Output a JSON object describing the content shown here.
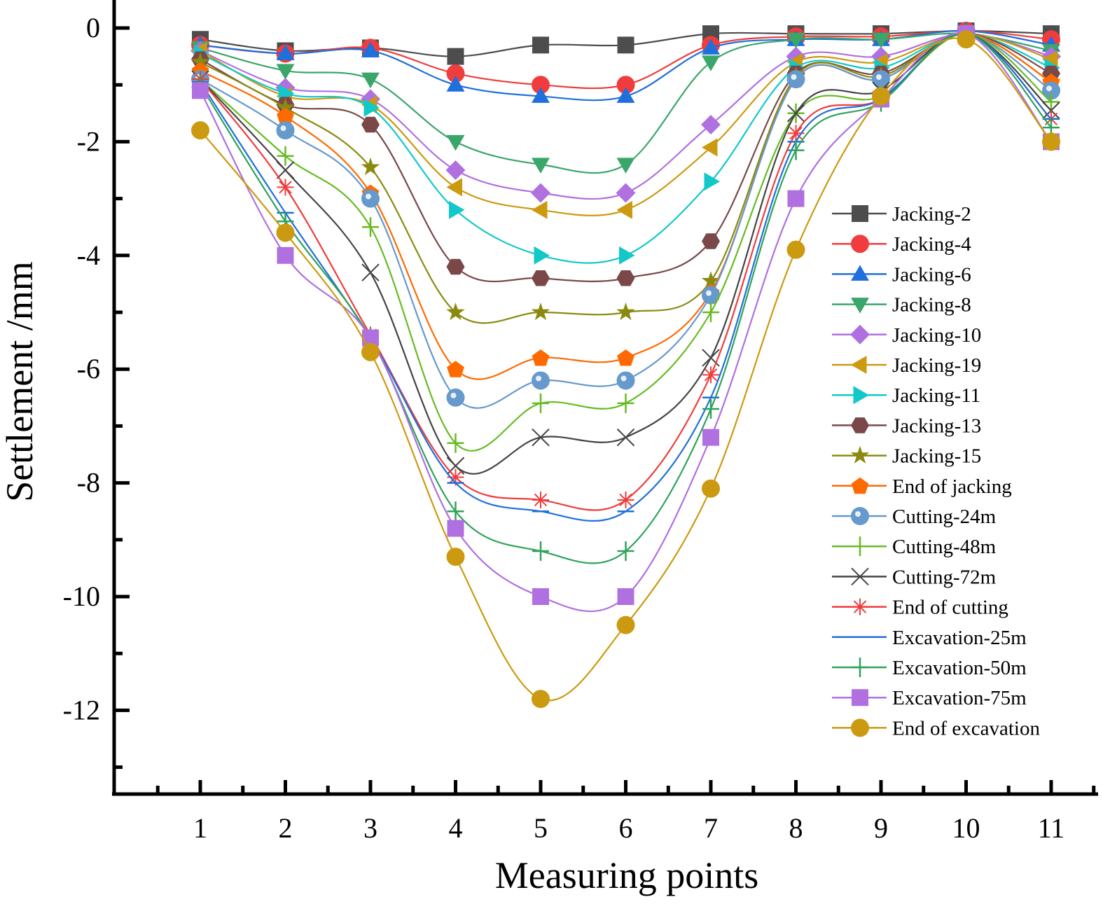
{
  "chart_data": {
    "type": "line",
    "title": "",
    "xlabel": "Measuring points",
    "ylabel": "Settlement /mm",
    "xlim": [
      0,
      11.5
    ],
    "ylim": [
      -13.5,
      0.4
    ],
    "x_ticks": [
      1,
      2,
      3,
      4,
      5,
      6,
      7,
      8,
      9,
      10,
      11
    ],
    "x_tick_labels": [
      "1",
      "2",
      "3",
      "4",
      "5",
      "6",
      "7",
      "8",
      "9",
      "10",
      "11"
    ],
    "y_ticks": [
      0,
      -2,
      -4,
      -6,
      -8,
      -10,
      -12
    ],
    "y_tick_labels": [
      "0",
      "-2",
      "-4",
      "-6",
      "-8",
      "-10",
      "-12"
    ],
    "grid": false,
    "legend_position": "right",
    "x": [
      1,
      2,
      3,
      4,
      5,
      6,
      7,
      8,
      9,
      10,
      11
    ],
    "series": [
      {
        "name": "Jacking-2",
        "color": "#4d4d4d",
        "marker": "square",
        "values": [
          -0.2,
          -0.4,
          -0.35,
          -0.5,
          -0.3,
          -0.3,
          -0.1,
          -0.1,
          -0.1,
          -0.05,
          -0.1
        ]
      },
      {
        "name": "Jacking-4",
        "color": "#f03c3c",
        "marker": "circle",
        "values": [
          -0.3,
          -0.45,
          -0.35,
          -0.8,
          -1.0,
          -1.0,
          -0.3,
          -0.15,
          -0.15,
          -0.05,
          -0.2
        ]
      },
      {
        "name": "Jacking-6",
        "color": "#1f6fdc",
        "marker": "triangle-up",
        "values": [
          -0.3,
          -0.45,
          -0.4,
          -1.0,
          -1.2,
          -1.2,
          -0.35,
          -0.2,
          -0.2,
          -0.05,
          -0.3
        ]
      },
      {
        "name": "Jacking-8",
        "color": "#3aa66a",
        "marker": "triangle-down",
        "values": [
          -0.35,
          -0.75,
          -0.9,
          -2.0,
          -2.4,
          -2.4,
          -0.6,
          -0.2,
          -0.2,
          -0.1,
          -0.4
        ]
      },
      {
        "name": "Jacking-10",
        "color": "#b070e0",
        "marker": "diamond",
        "values": [
          -0.4,
          -1.05,
          -1.25,
          -2.5,
          -2.9,
          -2.9,
          -1.7,
          -0.5,
          -0.5,
          -0.1,
          -0.5
        ]
      },
      {
        "name": "Jacking-19",
        "color": "#cc9a10",
        "marker": "triangle-left",
        "values": [
          -0.4,
          -1.2,
          -1.35,
          -2.8,
          -3.2,
          -3.2,
          -2.1,
          -0.6,
          -0.6,
          -0.1,
          -0.55
        ]
      },
      {
        "name": "Jacking-11",
        "color": "#12c8c8",
        "marker": "triangle-right",
        "values": [
          -0.45,
          -1.15,
          -1.4,
          -3.2,
          -4.0,
          -4.0,
          -2.7,
          -0.7,
          -0.7,
          -0.1,
          -0.7
        ]
      },
      {
        "name": "Jacking-13",
        "color": "#7a4848",
        "marker": "hexagon",
        "values": [
          -0.55,
          -1.35,
          -1.7,
          -4.2,
          -4.4,
          -4.4,
          -3.75,
          -0.8,
          -0.8,
          -0.1,
          -0.8
        ]
      },
      {
        "name": "Jacking-15",
        "color": "#8a8a10",
        "marker": "star",
        "values": [
          -0.6,
          -1.4,
          -2.45,
          -5.0,
          -5.0,
          -5.0,
          -4.45,
          -0.85,
          -0.85,
          -0.1,
          -0.95
        ]
      },
      {
        "name": "End of jacking",
        "color": "#ff6a00",
        "marker": "pentagon",
        "values": [
          -0.75,
          -1.55,
          -2.9,
          -6.0,
          -5.8,
          -5.8,
          -4.65,
          -0.9,
          -0.9,
          -0.1,
          -0.95
        ]
      },
      {
        "name": "Cutting-24m",
        "color": "#6699cc",
        "marker": "sphere",
        "values": [
          -0.9,
          -1.8,
          -3.0,
          -6.5,
          -6.2,
          -6.2,
          -4.7,
          -0.9,
          -0.9,
          -0.1,
          -1.1
        ]
      },
      {
        "name": "Cutting-48m",
        "color": "#66bb22",
        "marker": "plus",
        "values": [
          -0.9,
          -2.25,
          -3.5,
          -7.3,
          -6.6,
          -6.6,
          -5.0,
          -1.5,
          -1.2,
          -0.1,
          -1.3
        ]
      },
      {
        "name": "Cutting-72m",
        "color": "#444444",
        "marker": "x",
        "values": [
          -0.9,
          -2.5,
          -4.3,
          -7.7,
          -7.2,
          -7.2,
          -5.8,
          -1.5,
          -1.1,
          -0.1,
          -1.45
        ]
      },
      {
        "name": "End of cutting",
        "color": "#f03c3c",
        "marker": "asterisk",
        "values": [
          -0.9,
          -2.8,
          -5.4,
          -7.9,
          -8.3,
          -8.3,
          -6.1,
          -1.85,
          -1.25,
          -0.1,
          -1.6
        ]
      },
      {
        "name": "Excavation-25m",
        "color": "#1f6fdc",
        "marker": "hbar",
        "values": [
          -0.95,
          -3.25,
          -5.45,
          -8.0,
          -8.5,
          -8.5,
          -6.5,
          -2.0,
          -1.25,
          -0.1,
          -1.6
        ]
      },
      {
        "name": "Excavation-50m",
        "color": "#2ea35a",
        "marker": "plus",
        "values": [
          -1.0,
          -3.4,
          -5.45,
          -8.5,
          -9.2,
          -9.2,
          -6.7,
          -2.15,
          -1.3,
          -0.1,
          -1.75
        ]
      },
      {
        "name": "Excavation-75m",
        "color": "#b070e0",
        "marker": "square",
        "values": [
          -1.1,
          -4.0,
          -5.45,
          -8.8,
          -10.0,
          -10.0,
          -7.2,
          -3.0,
          -1.25,
          -0.1,
          -2.0
        ]
      },
      {
        "name": "End of excavation",
        "color": "#cc9a10",
        "marker": "circle",
        "values": [
          -1.8,
          -3.6,
          -5.7,
          -9.3,
          -11.8,
          -10.5,
          -8.1,
          -3.9,
          -1.2,
          -0.2,
          -2.0
        ]
      }
    ]
  }
}
